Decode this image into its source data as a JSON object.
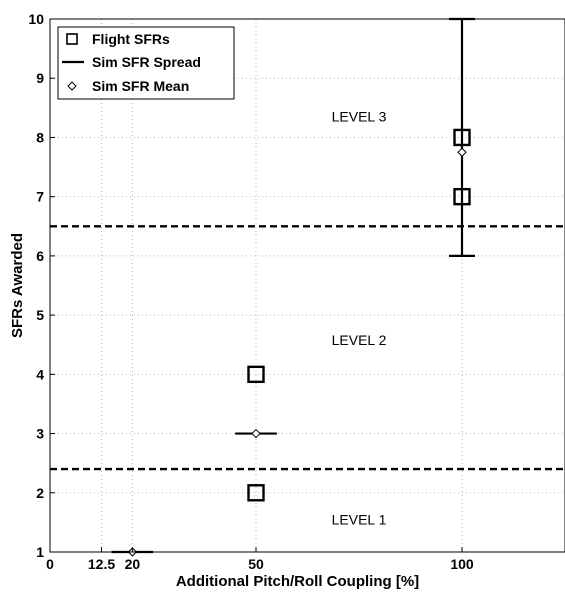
{
  "chart_data": {
    "type": "scatter",
    "xlabel": "Additional Pitch/Roll Coupling [%]",
    "ylabel": "SFRs Awarded",
    "xlim": [
      0,
      125
    ],
    "ylim": [
      1,
      10
    ],
    "x_ticks": [
      0,
      12.5,
      20,
      50,
      100
    ],
    "x_tick_labels": [
      "0",
      "12.5",
      "20",
      "50",
      "100"
    ],
    "y_ticks": [
      1,
      2,
      3,
      4,
      5,
      6,
      7,
      8,
      9,
      10
    ],
    "y_tick_labels": [
      "1",
      "2",
      "3",
      "4",
      "5",
      "6",
      "7",
      "8",
      "9",
      "10"
    ],
    "grid": true,
    "legend_position": "top-left",
    "series": [
      {
        "name": "Flight SFRs",
        "marker": "square",
        "points": [
          {
            "x": 50,
            "y": 4
          },
          {
            "x": 50,
            "y": 2
          },
          {
            "x": 100,
            "y": 8
          },
          {
            "x": 100,
            "y": 7
          }
        ]
      },
      {
        "name": "Sim SFR Spread",
        "marker": "range",
        "ranges": [
          {
            "x": 20,
            "y_min": 1,
            "y_max": 1
          },
          {
            "x": 50,
            "y_min": 3,
            "y_max": 3
          },
          {
            "x": 100,
            "y_min": 6,
            "y_max": 10
          }
        ]
      },
      {
        "name": "Sim SFR Mean",
        "marker": "diamond",
        "points": [
          {
            "x": 20,
            "y": 1
          },
          {
            "x": 50,
            "y": 3
          },
          {
            "x": 100,
            "y": 7.75
          }
        ]
      }
    ],
    "threshold_lines": [
      {
        "y": 6.5,
        "style": "dashed"
      },
      {
        "y": 2.4,
        "style": "dashed"
      }
    ],
    "annotations": [
      {
        "text": "LEVEL 3",
        "x": 75,
        "y": 8.35
      },
      {
        "text": "LEVEL 2",
        "x": 75,
        "y": 4.58
      },
      {
        "text": "LEVEL 1",
        "x": 75,
        "y": 1.55
      }
    ]
  }
}
